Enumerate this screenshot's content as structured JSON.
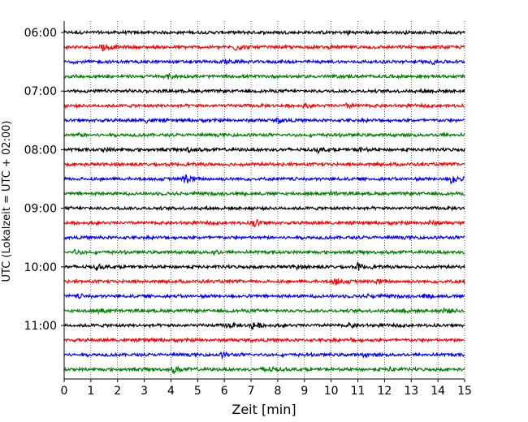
{
  "chart_data": {
    "type": "line",
    "title": "",
    "xlabel": "Zeit  [min]",
    "ylabel": "UTC (Lokalzeit = UTC + 02:00)",
    "xlim": [
      0,
      15
    ],
    "x_ticks": [
      0,
      1,
      2,
      3,
      4,
      5,
      6,
      7,
      8,
      9,
      10,
      11,
      12,
      13,
      14,
      15
    ],
    "y_tick_labels": [
      "06:00",
      "07:00",
      "08:00",
      "09:00",
      "10:00",
      "11:00"
    ],
    "grid": "vertical dotted",
    "trace_interval_minutes": 15,
    "first_trace": "06:00",
    "trace_colors": [
      "#000000",
      "#ff0000",
      "#0000ff",
      "#008000"
    ],
    "series": [
      {
        "start": "06:00",
        "color": "#000000",
        "events": [
          [
            10.6,
            0.25
          ]
        ]
      },
      {
        "start": "06:15",
        "color": "#ff0000",
        "events": [
          [
            1.4,
            0.6
          ],
          [
            6.4,
            0.45
          ]
        ]
      },
      {
        "start": "06:30",
        "color": "#0000ff",
        "events": [
          [
            6.0,
            0.3
          ],
          [
            13.8,
            0.25
          ]
        ]
      },
      {
        "start": "06:45",
        "color": "#008000",
        "events": [
          [
            3.9,
            0.3
          ]
        ]
      },
      {
        "start": "07:00",
        "color": "#000000",
        "events": [
          [
            13.5,
            0.2
          ]
        ]
      },
      {
        "start": "07:15",
        "color": "#ff0000",
        "events": [
          [
            9.0,
            0.2
          ],
          [
            10.6,
            0.3
          ]
        ]
      },
      {
        "start": "07:30",
        "color": "#0000ff",
        "events": [
          [
            3.1,
            0.3
          ],
          [
            8.0,
            0.3
          ]
        ]
      },
      {
        "start": "07:45",
        "color": "#008000",
        "events": [
          [
            0.5,
            0.2
          ],
          [
            14.0,
            0.2
          ]
        ]
      },
      {
        "start": "08:00",
        "color": "#000000",
        "events": [
          [
            1.5,
            0.3
          ],
          [
            4.6,
            0.35
          ],
          [
            9.5,
            0.35
          ],
          [
            11.0,
            0.3
          ]
        ]
      },
      {
        "start": "08:15",
        "color": "#ff0000",
        "events": []
      },
      {
        "start": "08:30",
        "color": "#0000ff",
        "events": [
          [
            4.5,
            0.9
          ],
          [
            14.5,
            0.85
          ]
        ]
      },
      {
        "start": "08:45",
        "color": "#008000",
        "events": [
          [
            10.0,
            0.2
          ]
        ]
      },
      {
        "start": "09:00",
        "color": "#000000",
        "events": []
      },
      {
        "start": "09:15",
        "color": "#ff0000",
        "events": [
          [
            7.1,
            0.65
          ],
          [
            13.7,
            0.25
          ]
        ]
      },
      {
        "start": "09:30",
        "color": "#0000ff",
        "events": []
      },
      {
        "start": "09:45",
        "color": "#008000",
        "events": [
          [
            0.4,
            0.3
          ],
          [
            5.6,
            0.3
          ]
        ]
      },
      {
        "start": "10:00",
        "color": "#000000",
        "events": [
          [
            1.2,
            0.3
          ],
          [
            8.6,
            0.3
          ],
          [
            11.0,
            0.45
          ]
        ]
      },
      {
        "start": "10:15",
        "color": "#ff0000",
        "events": [
          [
            10.1,
            0.55
          ],
          [
            11.7,
            0.3
          ],
          [
            15.0,
            0.3
          ]
        ]
      },
      {
        "start": "10:30",
        "color": "#0000ff",
        "events": [
          [
            0.5,
            0.2
          ],
          [
            11.4,
            0.25
          ],
          [
            13.5,
            0.25
          ]
        ]
      },
      {
        "start": "10:45",
        "color": "#008000",
        "events": [
          [
            1.3,
            0.3
          ],
          [
            12.7,
            0.3
          ],
          [
            14.2,
            0.5
          ]
        ]
      },
      {
        "start": "11:00",
        "color": "#000000",
        "events": [
          [
            6.1,
            0.3
          ],
          [
            7.0,
            0.7
          ],
          [
            10.7,
            0.3
          ]
        ]
      },
      {
        "start": "11:15",
        "color": "#ff0000",
        "events": [
          [
            3.0,
            0.2
          ],
          [
            10.7,
            0.2
          ]
        ]
      },
      {
        "start": "11:30",
        "color": "#0000ff",
        "events": [
          [
            5.9,
            0.3
          ],
          [
            11.2,
            0.2
          ]
        ]
      },
      {
        "start": "11:45",
        "color": "#008000",
        "events": [
          [
            4.1,
            0.5
          ],
          [
            7.5,
            0.6
          ],
          [
            12.2,
            0.3
          ]
        ]
      }
    ]
  }
}
